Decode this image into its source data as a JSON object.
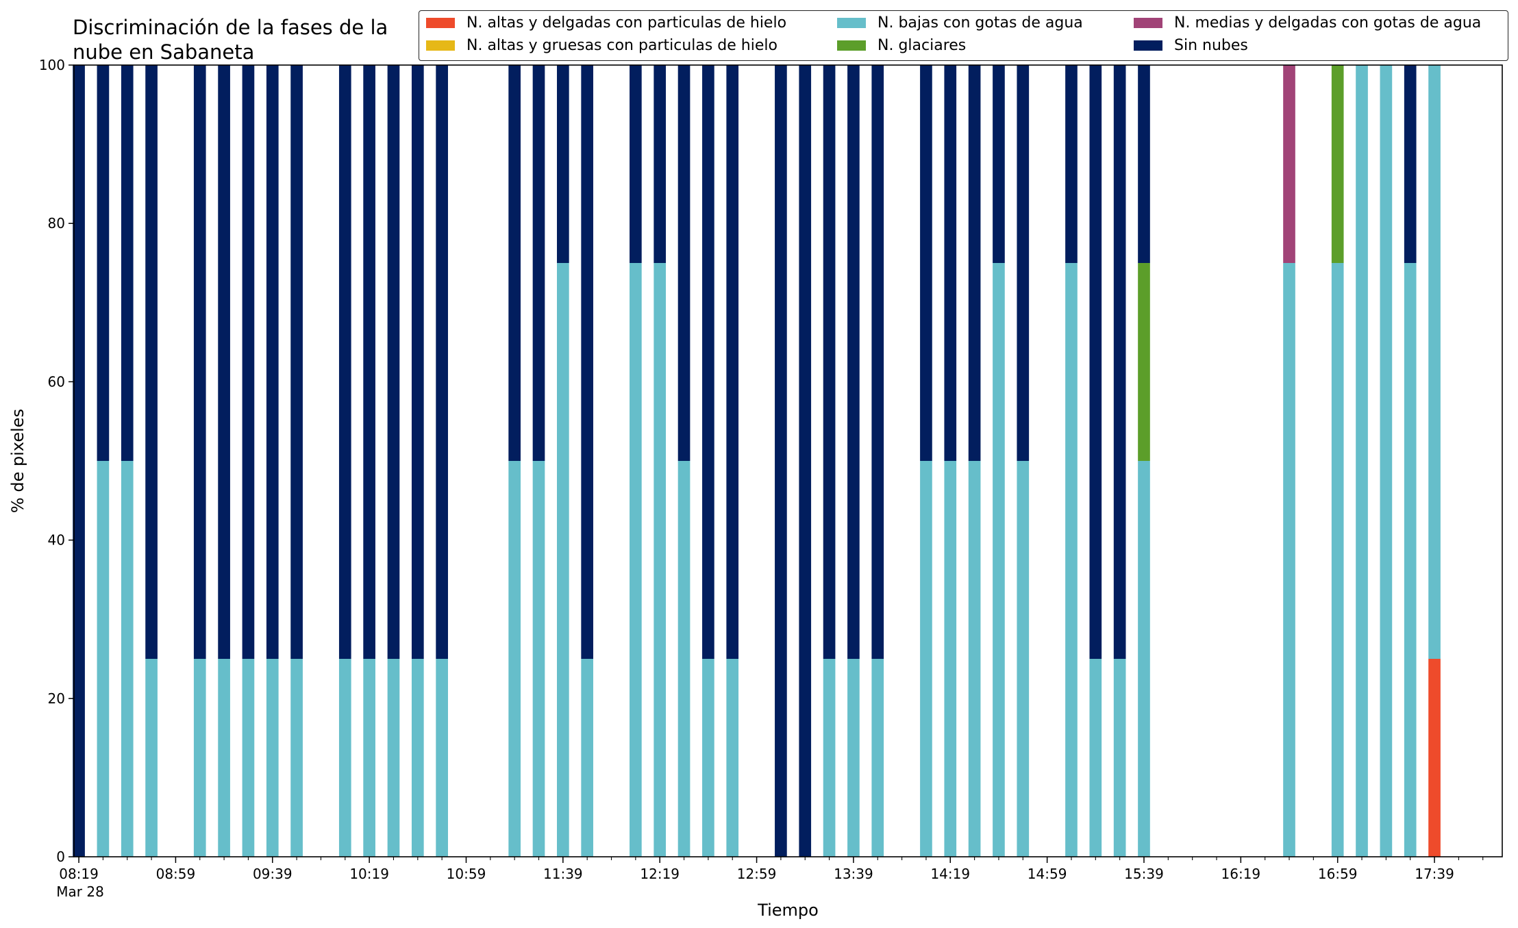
{
  "chart_data": {
    "type": "bar",
    "stacked": true,
    "title_lines": [
      "Discriminación de la fases de la",
      "nube en Sabaneta"
    ],
    "xlabel": "Tiempo",
    "ylabel": "% de pixeles",
    "ylim": [
      0,
      100
    ],
    "yticks": [
      0,
      20,
      40,
      60,
      80,
      100
    ],
    "x_domain_minutes": [
      497,
      1087
    ],
    "x_tick_labels": [
      {
        "minutes": 499,
        "label": "08:19"
      },
      {
        "minutes": 539,
        "label": "08:59"
      },
      {
        "minutes": 579,
        "label": "09:39"
      },
      {
        "minutes": 619,
        "label": "10:19"
      },
      {
        "minutes": 659,
        "label": "10:59"
      },
      {
        "minutes": 699,
        "label": "11:39"
      },
      {
        "minutes": 739,
        "label": "12:19"
      },
      {
        "minutes": 779,
        "label": "12:59"
      },
      {
        "minutes": 819,
        "label": "13:39"
      },
      {
        "minutes": 859,
        "label": "14:19"
      },
      {
        "minutes": 899,
        "label": "14:59"
      },
      {
        "minutes": 939,
        "label": "15:39"
      },
      {
        "minutes": 979,
        "label": "16:19"
      },
      {
        "minutes": 1019,
        "label": "16:59"
      },
      {
        "minutes": 1059,
        "label": "17:39"
      }
    ],
    "date_label": "Mar 28",
    "grid": false,
    "legend_position": "top-right",
    "series": [
      {
        "name": "N. altas y delgadas con particulas de hielo",
        "color": "#EE4B2B"
      },
      {
        "name": "N. altas y gruesas con particulas de hielo",
        "color": "#E6B817"
      },
      {
        "name": "N. bajas con gotas de agua",
        "color": "#66BECA"
      },
      {
        "name": "N. glaciares",
        "color": "#5C9E2A"
      },
      {
        "name": "N. medias y delgadas con gotas de agua",
        "color": "#A14377"
      },
      {
        "name": "Sin nubes",
        "color": "#021E5E"
      }
    ],
    "bar_width_minutes": 5,
    "bars": [
      {
        "time": "08:19",
        "values": [
          0,
          0,
          0,
          0,
          0,
          100
        ]
      },
      {
        "time": "08:29",
        "values": [
          0,
          0,
          50,
          0,
          0,
          50
        ]
      },
      {
        "time": "08:39",
        "values": [
          0,
          0,
          50,
          0,
          0,
          50
        ]
      },
      {
        "time": "08:49",
        "values": [
          0,
          0,
          25,
          0,
          0,
          75
        ]
      },
      {
        "time": "09:09",
        "values": [
          0,
          0,
          25,
          0,
          0,
          75
        ]
      },
      {
        "time": "09:19",
        "values": [
          0,
          0,
          25,
          0,
          0,
          75
        ]
      },
      {
        "time": "09:29",
        "values": [
          0,
          0,
          25,
          0,
          0,
          75
        ]
      },
      {
        "time": "09:39",
        "values": [
          0,
          0,
          25,
          0,
          0,
          75
        ]
      },
      {
        "time": "09:49",
        "values": [
          0,
          0,
          25,
          0,
          0,
          75
        ]
      },
      {
        "time": "10:09",
        "values": [
          0,
          0,
          25,
          0,
          0,
          75
        ]
      },
      {
        "time": "10:19",
        "values": [
          0,
          0,
          25,
          0,
          0,
          75
        ]
      },
      {
        "time": "10:29",
        "values": [
          0,
          0,
          25,
          0,
          0,
          75
        ]
      },
      {
        "time": "10:39",
        "values": [
          0,
          0,
          25,
          0,
          0,
          75
        ]
      },
      {
        "time": "10:49",
        "values": [
          0,
          0,
          25,
          0,
          0,
          75
        ]
      },
      {
        "time": "11:19",
        "values": [
          0,
          0,
          50,
          0,
          0,
          50
        ]
      },
      {
        "time": "11:29",
        "values": [
          0,
          0,
          50,
          0,
          0,
          50
        ]
      },
      {
        "time": "11:39",
        "values": [
          0,
          0,
          75,
          0,
          0,
          25
        ]
      },
      {
        "time": "11:49",
        "values": [
          0,
          0,
          25,
          0,
          0,
          75
        ]
      },
      {
        "time": "12:09",
        "values": [
          0,
          0,
          75,
          0,
          0,
          25
        ]
      },
      {
        "time": "12:19",
        "values": [
          0,
          0,
          75,
          0,
          0,
          25
        ]
      },
      {
        "time": "12:29",
        "values": [
          0,
          0,
          50,
          0,
          0,
          50
        ]
      },
      {
        "time": "12:39",
        "values": [
          0,
          0,
          25,
          0,
          0,
          75
        ]
      },
      {
        "time": "12:49",
        "values": [
          0,
          0,
          25,
          0,
          0,
          75
        ]
      },
      {
        "time": "13:09",
        "values": [
          0,
          0,
          0,
          0,
          0,
          100
        ]
      },
      {
        "time": "13:19",
        "values": [
          0,
          0,
          0,
          0,
          0,
          100
        ]
      },
      {
        "time": "13:29",
        "values": [
          0,
          0,
          25,
          0,
          0,
          75
        ]
      },
      {
        "time": "13:39",
        "values": [
          0,
          0,
          25,
          0,
          0,
          75
        ]
      },
      {
        "time": "13:49",
        "values": [
          0,
          0,
          25,
          0,
          0,
          75
        ]
      },
      {
        "time": "14:09",
        "values": [
          0,
          0,
          50,
          0,
          0,
          50
        ]
      },
      {
        "time": "14:19",
        "values": [
          0,
          0,
          50,
          0,
          0,
          50
        ]
      },
      {
        "time": "14:29",
        "values": [
          0,
          0,
          50,
          0,
          0,
          50
        ]
      },
      {
        "time": "14:39",
        "values": [
          0,
          0,
          75,
          0,
          0,
          25
        ]
      },
      {
        "time": "14:49",
        "values": [
          0,
          0,
          50,
          0,
          0,
          50
        ]
      },
      {
        "time": "15:09",
        "values": [
          0,
          0,
          75,
          0,
          0,
          25
        ]
      },
      {
        "time": "15:19",
        "values": [
          0,
          0,
          25,
          0,
          0,
          75
        ]
      },
      {
        "time": "15:29",
        "values": [
          0,
          0,
          25,
          0,
          0,
          75
        ]
      },
      {
        "time": "15:39",
        "values": [
          0,
          0,
          50,
          25,
          0,
          25
        ]
      },
      {
        "time": "16:39",
        "values": [
          0,
          0,
          75,
          0,
          25,
          0
        ]
      },
      {
        "time": "16:59",
        "values": [
          0,
          0,
          75,
          25,
          0,
          0
        ]
      },
      {
        "time": "17:09",
        "values": [
          0,
          0,
          100,
          0,
          0,
          0
        ]
      },
      {
        "time": "17:19",
        "values": [
          0,
          0,
          100,
          0,
          0,
          0
        ]
      },
      {
        "time": "17:29",
        "values": [
          0,
          0,
          75,
          0,
          0,
          25
        ]
      },
      {
        "time": "17:39",
        "values": [
          25,
          0,
          75,
          0,
          0,
          0
        ]
      }
    ]
  }
}
